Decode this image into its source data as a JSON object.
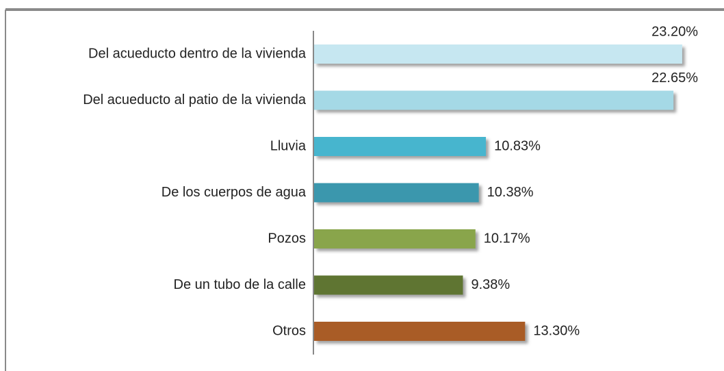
{
  "chart_data": {
    "type": "hbar",
    "categories": [
      "Del acueducto dentro de la vivienda",
      "Del acueducto al patio de la vivienda",
      "Lluvia",
      "De los cuerpos de agua",
      "Pozos",
      "De un tubo de la calle",
      "Otros"
    ],
    "values": [
      23.2,
      22.65,
      10.83,
      10.38,
      10.17,
      9.38,
      13.3
    ],
    "value_labels": [
      "23.20%",
      "22.65%",
      "10.83%",
      "10.38%",
      "10.17%",
      "9.38%",
      "13.30%"
    ],
    "colors": [
      "#c6e7f1",
      "#a5d9e6",
      "#47b5ce",
      "#3a97ad",
      "#89a54b",
      "#5f7533",
      "#a95c27"
    ],
    "xlim": [
      0,
      24.5
    ]
  }
}
